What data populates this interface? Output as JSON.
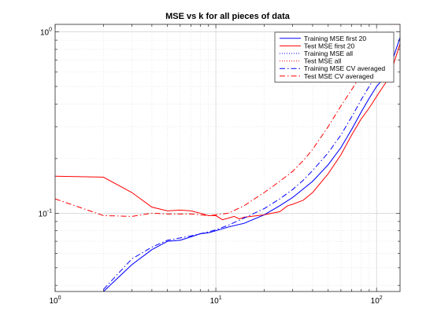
{
  "chart_data": {
    "type": "line",
    "title": "MSE vs k for all pieces of data",
    "xlabel": "",
    "ylabel": "",
    "xscale": "log",
    "yscale": "log",
    "xlim": [
      1,
      140
    ],
    "ylim": [
      0.037,
      1.1
    ],
    "grid": "on (major and minor)",
    "legend_position": "top-right",
    "x_ticks": [
      {
        "base": "10",
        "exp": "0",
        "value": 1
      },
      {
        "base": "10",
        "exp": "1",
        "value": 10
      },
      {
        "base": "10",
        "exp": "2",
        "value": 100
      }
    ],
    "y_ticks": [
      {
        "base": "10",
        "exp": "-1",
        "value": 0.1
      },
      {
        "base": "10",
        "exp": "0",
        "value": 1
      }
    ],
    "series": [
      {
        "name": "Training MSE first 20",
        "color": "#0000ff",
        "style": "solid",
        "points": [
          [
            2,
            0.037
          ],
          [
            3,
            0.052
          ],
          [
            4,
            0.063
          ],
          [
            5,
            0.07
          ],
          [
            6,
            0.071
          ],
          [
            7,
            0.074
          ],
          [
            8,
            0.077
          ],
          [
            9,
            0.078
          ],
          [
            10,
            0.08
          ],
          [
            12,
            0.084
          ],
          [
            15,
            0.088
          ],
          [
            20,
            0.098
          ],
          [
            25,
            0.11
          ],
          [
            30,
            0.122
          ],
          [
            35,
            0.136
          ],
          [
            40,
            0.15
          ],
          [
            50,
            0.185
          ],
          [
            60,
            0.23
          ],
          [
            70,
            0.29
          ],
          [
            80,
            0.36
          ],
          [
            90,
            0.43
          ],
          [
            100,
            0.5
          ],
          [
            110,
            0.55
          ],
          [
            120,
            0.62
          ],
          [
            140,
            0.93
          ]
        ]
      },
      {
        "name": "Test MSE first 20",
        "color": "#ff0000",
        "style": "solid",
        "points": [
          [
            1,
            0.16
          ],
          [
            2,
            0.158
          ],
          [
            3,
            0.13
          ],
          [
            4,
            0.108
          ],
          [
            5,
            0.103
          ],
          [
            6,
            0.104
          ],
          [
            7,
            0.103
          ],
          [
            8,
            0.1
          ],
          [
            9,
            0.097
          ],
          [
            10,
            0.097
          ],
          [
            11,
            0.092
          ],
          [
            12,
            0.094
          ],
          [
            13,
            0.096
          ],
          [
            14,
            0.093
          ],
          [
            15,
            0.095
          ],
          [
            20,
            0.098
          ],
          [
            25,
            0.102
          ],
          [
            28,
            0.11
          ],
          [
            30,
            0.112
          ],
          [
            35,
            0.118
          ],
          [
            40,
            0.13
          ],
          [
            50,
            0.165
          ],
          [
            60,
            0.21
          ],
          [
            70,
            0.27
          ],
          [
            80,
            0.33
          ],
          [
            90,
            0.38
          ],
          [
            100,
            0.44
          ],
          [
            110,
            0.5
          ],
          [
            120,
            0.56
          ],
          [
            140,
            0.86
          ]
        ]
      },
      {
        "name": "Training MSE all",
        "color": "#0000ff",
        "style": "dotted",
        "points": [
          [
            2,
            0.037
          ],
          [
            3,
            0.052
          ],
          [
            4,
            0.063
          ],
          [
            5,
            0.07
          ],
          [
            6,
            0.071
          ],
          [
            7,
            0.074
          ],
          [
            8,
            0.077
          ],
          [
            9,
            0.078
          ],
          [
            10,
            0.08
          ],
          [
            12,
            0.084
          ],
          [
            15,
            0.088
          ],
          [
            20,
            0.098
          ],
          [
            25,
            0.11
          ],
          [
            30,
            0.122
          ],
          [
            35,
            0.136
          ],
          [
            40,
            0.15
          ],
          [
            50,
            0.185
          ],
          [
            60,
            0.23
          ],
          [
            70,
            0.29
          ],
          [
            80,
            0.36
          ],
          [
            90,
            0.43
          ],
          [
            100,
            0.5
          ],
          [
            110,
            0.55
          ],
          [
            120,
            0.62
          ],
          [
            140,
            0.93
          ]
        ]
      },
      {
        "name": "Test MSE all",
        "color": "#ff0000",
        "style": "dotted",
        "points": [
          [
            120,
            1.1
          ],
          [
            140,
            1.1
          ]
        ]
      },
      {
        "name": "Training MSE CV averaged",
        "color": "#0000ff",
        "style": "dashdot",
        "points": [
          [
            2,
            0.038
          ],
          [
            3,
            0.056
          ],
          [
            4,
            0.065
          ],
          [
            5,
            0.071
          ],
          [
            6,
            0.073
          ],
          [
            7,
            0.075
          ],
          [
            8,
            0.077
          ],
          [
            9,
            0.079
          ],
          [
            10,
            0.081
          ],
          [
            12,
            0.086
          ],
          [
            15,
            0.094
          ],
          [
            20,
            0.106
          ],
          [
            25,
            0.12
          ],
          [
            30,
            0.135
          ],
          [
            35,
            0.152
          ],
          [
            40,
            0.172
          ],
          [
            50,
            0.215
          ],
          [
            60,
            0.27
          ],
          [
            70,
            0.34
          ],
          [
            80,
            0.42
          ],
          [
            90,
            0.5
          ],
          [
            100,
            0.58
          ],
          [
            110,
            0.65
          ],
          [
            120,
            0.72
          ]
        ]
      },
      {
        "name": "Test MSE CV averaged",
        "color": "#ff0000",
        "style": "dashdot",
        "points": [
          [
            1,
            0.12
          ],
          [
            2,
            0.097
          ],
          [
            3,
            0.096
          ],
          [
            4,
            0.1
          ],
          [
            5,
            0.099
          ],
          [
            6,
            0.099
          ],
          [
            7,
            0.099
          ],
          [
            8,
            0.098
          ],
          [
            9,
            0.097
          ],
          [
            10,
            0.098
          ],
          [
            12,
            0.1
          ],
          [
            15,
            0.11
          ],
          [
            20,
            0.13
          ],
          [
            25,
            0.15
          ],
          [
            30,
            0.17
          ],
          [
            35,
            0.195
          ],
          [
            40,
            0.225
          ],
          [
            50,
            0.3
          ],
          [
            60,
            0.39
          ],
          [
            70,
            0.48
          ],
          [
            80,
            0.58
          ],
          [
            90,
            0.68
          ],
          [
            100,
            0.8
          ],
          [
            110,
            0.9
          ],
          [
            120,
            1.0
          ]
        ]
      }
    ]
  }
}
